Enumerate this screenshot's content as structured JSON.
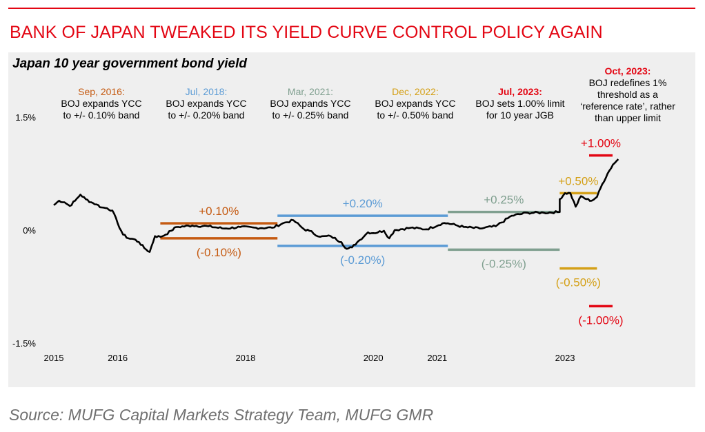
{
  "headline": "BANK OF JAPAN TWEAKED ITS YIELD CURVE CONTROL POLICY AGAIN",
  "source": "Source: MUFG Capital Markets Strategy Team, MUFG GMR",
  "colors": {
    "red": "#e30613",
    "orange": "#c55a11",
    "blue": "#5b9bd5",
    "sage": "#7f9f8f",
    "gold": "#d4a017",
    "line": "#000000",
    "panel": "#efefef"
  },
  "chart_data": {
    "type": "line",
    "title": "Japan 10 year government bond yield",
    "yticks": [
      "1.5%",
      "0%",
      "-1.5%"
    ],
    "ylim": [
      -1.5,
      1.5
    ],
    "xlim": [
      "2015-01",
      "2023-12"
    ],
    "xticks": [
      "2015",
      "2016",
      "2018",
      "2020",
      "2021",
      "2023"
    ],
    "series": [
      {
        "values": [
          [
            "2015-01",
            0.34
          ],
          [
            "2015-02",
            0.4
          ],
          [
            "2015-03",
            0.38
          ],
          [
            "2015-04",
            0.33
          ],
          [
            "2015-05",
            0.4
          ],
          [
            "2015-06",
            0.48
          ],
          [
            "2015-07",
            0.42
          ],
          [
            "2015-08",
            0.38
          ],
          [
            "2015-09",
            0.35
          ],
          [
            "2015-10",
            0.31
          ],
          [
            "2015-11",
            0.3
          ],
          [
            "2015-12",
            0.27
          ],
          [
            "2016-01",
            0.1
          ],
          [
            "2016-02",
            -0.05
          ],
          [
            "2016-03",
            -0.1
          ],
          [
            "2016-04",
            -0.11
          ],
          [
            "2016-05",
            -0.15
          ],
          [
            "2016-06",
            -0.23
          ],
          [
            "2016-07",
            -0.28
          ],
          [
            "2016-08",
            -0.07
          ],
          [
            "2016-09",
            -0.08
          ],
          [
            "2016-10",
            -0.05
          ],
          [
            "2016-11",
            0.0
          ],
          [
            "2016-12",
            0.05
          ],
          [
            "2017-03",
            0.07
          ],
          [
            "2017-06",
            0.06
          ],
          [
            "2017-09",
            0.03
          ],
          [
            "2017-12",
            0.05
          ],
          [
            "2018-03",
            0.04
          ],
          [
            "2018-06",
            0.04
          ],
          [
            "2018-08",
            0.1
          ],
          [
            "2018-10",
            0.14
          ],
          [
            "2018-12",
            0.02
          ],
          [
            "2019-01",
            0.0
          ],
          [
            "2019-03",
            -0.08
          ],
          [
            "2019-05",
            -0.07
          ],
          [
            "2019-07",
            -0.15
          ],
          [
            "2019-08",
            -0.24
          ],
          [
            "2019-09",
            -0.22
          ],
          [
            "2019-10",
            -0.15
          ],
          [
            "2019-12",
            -0.02
          ],
          [
            "2020-01",
            -0.03
          ],
          [
            "2020-03",
            0.0
          ],
          [
            "2020-04",
            -0.1
          ],
          [
            "2020-05",
            0.01
          ],
          [
            "2020-08",
            0.04
          ],
          [
            "2020-11",
            0.02
          ],
          [
            "2021-02",
            0.1
          ],
          [
            "2021-03",
            0.1
          ],
          [
            "2021-06",
            0.05
          ],
          [
            "2021-09",
            0.03
          ],
          [
            "2021-12",
            0.06
          ],
          [
            "2022-03",
            0.2
          ],
          [
            "2022-06",
            0.24
          ],
          [
            "2022-09",
            0.24
          ],
          [
            "2022-12",
            0.25
          ],
          [
            "2022-12",
            0.42
          ],
          [
            "2023-01",
            0.5
          ],
          [
            "2023-02",
            0.5
          ],
          [
            "2023-03",
            0.32
          ],
          [
            "2023-04",
            0.46
          ],
          [
            "2023-05",
            0.42
          ],
          [
            "2023-06",
            0.4
          ],
          [
            "2023-07",
            0.45
          ],
          [
            "2023-08",
            0.62
          ],
          [
            "2023-09",
            0.76
          ],
          [
            "2023-10",
            0.88
          ],
          [
            "2023-11",
            0.95
          ]
        ]
      }
    ],
    "bands": [
      {
        "label_upper": "+0.10%",
        "label_lower": "(-0.10%)",
        "upper": 0.1,
        "lower": -0.1,
        "from": "2016-09",
        "to": "2018-07",
        "color": "#c55a11"
      },
      {
        "label_upper": "+0.20%",
        "label_lower": "(-0.20%)",
        "upper": 0.2,
        "lower": -0.2,
        "from": "2018-07",
        "to": "2021-03",
        "color": "#5b9bd5"
      },
      {
        "label_upper": "+0.25%",
        "label_lower": "(-0.25%)",
        "upper": 0.25,
        "lower": -0.25,
        "from": "2021-03",
        "to": "2022-12",
        "color": "#7f9f8f"
      },
      {
        "label_upper": "+0.50%",
        "label_lower": "(-0.50%)",
        "upper": 0.5,
        "lower": -0.5,
        "from": "2022-12",
        "to": "2023-07",
        "color": "#d4a017"
      },
      {
        "label_upper": "+1.00%",
        "label_lower": "(-1.00%)",
        "upper": 1.0,
        "lower": -1.0,
        "from": "2023-07",
        "to": "2023-10",
        "color": "#e30613"
      }
    ],
    "annotations": [
      {
        "date": "Sep, 2016:",
        "text": [
          "BOJ expands YCC",
          "to +/- 0.10% band"
        ],
        "color": "#c55a11"
      },
      {
        "date": "Jul, 2018:",
        "text": [
          "BOJ expands YCC",
          "to +/- 0.20% band"
        ],
        "color": "#5b9bd5"
      },
      {
        "date": "Mar, 2021:",
        "text": [
          "BOJ expands YCC",
          "to +/- 0.25% band"
        ],
        "color": "#7f9f8f"
      },
      {
        "date": "Dec, 2022:",
        "text": [
          "BOJ expands YCC",
          "to +/- 0.50% band"
        ],
        "color": "#d4a017"
      },
      {
        "date": "Jul, 2023:",
        "text": [
          "BOJ sets 1.00% limit",
          "for 10 year JGB"
        ],
        "color": "#e30613"
      },
      {
        "date": "Oct, 2023:",
        "text": [
          "BOJ redefines 1%",
          "threshold as a",
          "‘reference rate’, rather",
          "than upper limit"
        ],
        "color": "#e30613"
      }
    ],
    "grid": false,
    "legend": "none"
  }
}
